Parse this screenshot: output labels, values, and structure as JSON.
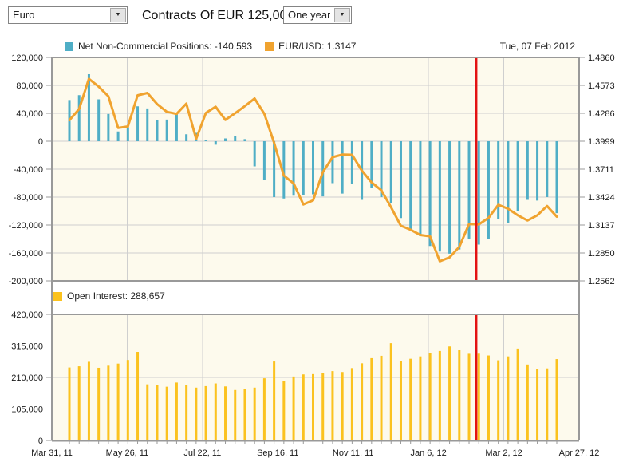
{
  "toolbar": {
    "currency_select": {
      "value": "Euro"
    },
    "title": "Contracts Of EUR 125,000",
    "range_select": {
      "value": "One year"
    }
  },
  "header": {
    "date_label": "Tue, 07 Feb 2012"
  },
  "icons": {
    "dropdown_arrow": "▼"
  },
  "colors": {
    "net_positions": "#4FAEC6",
    "eurusd_line": "#F0A32F",
    "open_interest": "#FBC21E",
    "marker_line": "#E31212",
    "plot_bg": "#FDFAED",
    "grid": "#CFCFCF",
    "border": "#999999",
    "text": "#1A1A1A"
  },
  "chart_data": [
    {
      "type": "bar",
      "panel": "top",
      "title": "Net Non-Commercial Positions and EUR/USD",
      "legend": [
        {
          "label": "Net Non-Commercial Positions: -140,593",
          "color_key": "net_positions"
        },
        {
          "label": "EUR/USD: 1.3147",
          "color_key": "eurusd_line"
        }
      ],
      "left_axis": {
        "min": -200000,
        "max": 120000,
        "ticks": [
          "120,000",
          "80,000",
          "40,000",
          "0",
          "-40,000",
          "-80,000",
          "-120,000",
          "-160,000",
          "-200,000"
        ]
      },
      "right_axis": {
        "min": 1.2562,
        "max": 1.486,
        "ticks": [
          "1.4860",
          "1.4573",
          "1.4286",
          "1.3999",
          "1.3711",
          "1.3424",
          "1.3137",
          "1.2850",
          "1.2562"
        ]
      },
      "x_labels": [
        "Mar 31, 11",
        "May 26, 11",
        "Jul 22, 11",
        "Sep 16, 11",
        "Nov 11, 11",
        "Jan 6, 12",
        "Mar 2, 12",
        "Apr 27, 12"
      ],
      "marker": {
        "index": 41,
        "date": "Tue, 07 Feb 2012"
      },
      "series": [
        {
          "name": "Net Non-Commercial Positions",
          "type": "bar",
          "axis": "left",
          "current": -140593,
          "values": [
            59000,
            66000,
            96000,
            60000,
            39000,
            14000,
            20000,
            50000,
            47000,
            30000,
            31000,
            41000,
            10000,
            12000,
            2000,
            -5000,
            4000,
            8000,
            3000,
            -36000,
            -56000,
            -80000,
            -82000,
            -78000,
            -77000,
            -76000,
            -79000,
            -60000,
            -75000,
            -61000,
            -84000,
            -67000,
            -80000,
            -89000,
            -110000,
            -127000,
            -136000,
            -150000,
            -158000,
            -161000,
            -155000,
            -140593,
            -148000,
            -140000,
            -111000,
            -117000,
            -100000,
            -84000,
            -85000,
            -80000,
            -103000
          ]
        },
        {
          "name": "EUR/USD",
          "type": "line",
          "axis": "right",
          "current": 1.3147,
          "values": [
            1.4215,
            1.433,
            1.464,
            1.456,
            1.446,
            1.4135,
            1.415,
            1.447,
            1.4495,
            1.438,
            1.43,
            1.428,
            1.4385,
            1.4022,
            1.429,
            1.4353,
            1.4218,
            1.4286,
            1.436,
            1.4437,
            1.428,
            1.3983,
            1.3645,
            1.3564,
            1.3348,
            1.339,
            1.368,
            1.3834,
            1.3861,
            1.3859,
            1.3696,
            1.3575,
            1.3494,
            1.3318,
            1.3129,
            1.3088,
            1.3034,
            1.302,
            1.2764,
            1.2804,
            1.2912,
            1.3147,
            1.3142,
            1.321,
            1.3345,
            1.3304,
            1.3237,
            1.3183,
            1.3237,
            1.3332,
            1.3223
          ]
        }
      ]
    },
    {
      "type": "bar",
      "panel": "bottom",
      "title": "Open Interest",
      "legend": [
        {
          "label": "Open Interest: 288,657",
          "color_key": "open_interest"
        }
      ],
      "left_axis": {
        "min": 0,
        "max": 420000,
        "ticks": [
          "420,000",
          "315,000",
          "210,000",
          "105,000",
          "0"
        ]
      },
      "marker": {
        "index": 41
      },
      "series": [
        {
          "name": "Open Interest",
          "type": "bar",
          "axis": "left",
          "current": 288657,
          "values": [
            243000,
            247000,
            262000,
            242000,
            249000,
            256000,
            268000,
            295000,
            187000,
            185000,
            179000,
            193000,
            184000,
            176000,
            181000,
            190000,
            180000,
            168000,
            172000,
            176000,
            207000,
            263000,
            199000,
            213000,
            220000,
            221000,
            225000,
            231000,
            228000,
            241000,
            257000,
            274000,
            282000,
            324000,
            264000,
            272000,
            280000,
            291000,
            298000,
            313000,
            301000,
            288657,
            289000,
            283000,
            267000,
            280000,
            306000,
            253000,
            237000,
            240000,
            271000
          ]
        }
      ]
    }
  ]
}
